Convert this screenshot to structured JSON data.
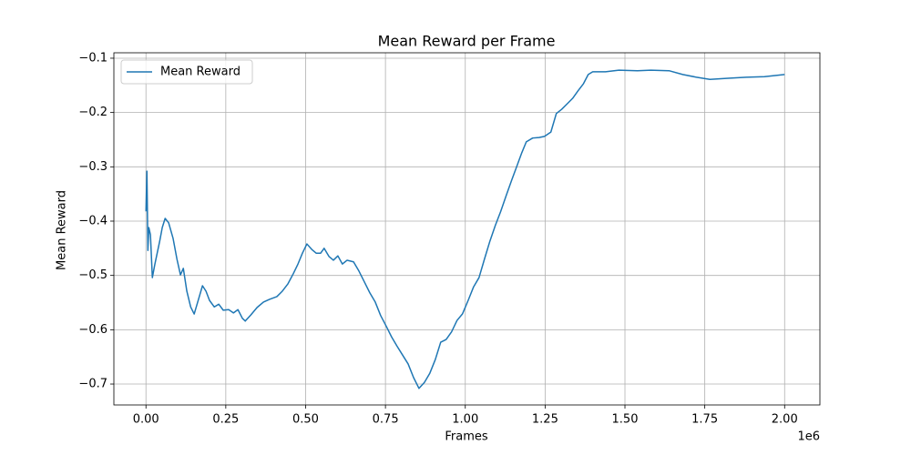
{
  "chart_data": {
    "type": "line",
    "title": "Mean Reward per Frame",
    "xlabel": "Frames",
    "ylabel": "Mean Reward",
    "x_offset_label": "1e6",
    "xlim": [
      -100500,
      2110500
    ],
    "ylim": [
      -0.7385,
      -0.09
    ],
    "xticks": [
      {
        "value": 0,
        "label": "0.00"
      },
      {
        "value": 250000,
        "label": "0.25"
      },
      {
        "value": 500000,
        "label": "0.50"
      },
      {
        "value": 750000,
        "label": "0.75"
      },
      {
        "value": 1000000,
        "label": "1.00"
      },
      {
        "value": 1250000,
        "label": "1.25"
      },
      {
        "value": 1500000,
        "label": "1.50"
      },
      {
        "value": 1750000,
        "label": "1.75"
      },
      {
        "value": 2000000,
        "label": "2.00"
      }
    ],
    "yticks": [
      {
        "value": -0.7,
        "label": "−0.7"
      },
      {
        "value": -0.6,
        "label": "−0.6"
      },
      {
        "value": -0.5,
        "label": "−0.5"
      },
      {
        "value": -0.4,
        "label": "−0.4"
      },
      {
        "value": -0.3,
        "label": "−0.3"
      },
      {
        "value": -0.2,
        "label": "−0.2"
      },
      {
        "value": -0.1,
        "label": "−0.1"
      }
    ],
    "grid": true,
    "legend": "upper-left",
    "x": [
      0,
      3000,
      6000,
      9000,
      14000,
      20000,
      28000,
      43000,
      51000,
      60000,
      71000,
      85000,
      97000,
      108000,
      117000,
      128000,
      140000,
      151000,
      162000,
      177000,
      188000,
      199000,
      214000,
      228000,
      242000,
      259000,
      274000,
      288000,
      302000,
      311000,
      328000,
      348000,
      368000,
      387000,
      410000,
      427000,
      444000,
      462000,
      476000,
      490000,
      504000,
      519000,
      533000,
      547000,
      558000,
      573000,
      587000,
      601000,
      615000,
      630000,
      650000,
      667000,
      684000,
      701000,
      718000,
      735000,
      752000,
      769000,
      786000,
      803000,
      821000,
      838000,
      855000,
      872000,
      889000,
      906000,
      923000,
      940000,
      957000,
      974000,
      991000,
      1009000,
      1026000,
      1043000,
      1060000,
      1077000,
      1094000,
      1111000,
      1128000,
      1145000,
      1162000,
      1177000,
      1191000,
      1211000,
      1231000,
      1248000,
      1268000,
      1285000,
      1302000,
      1319000,
      1336000,
      1353000,
      1370000,
      1385000,
      1399000,
      1439000,
      1481000,
      1539000,
      1581000,
      1638000,
      1681000,
      1724000,
      1766000,
      1823000,
      1880000,
      1937000,
      2000000
    ],
    "series": [
      {
        "name": "Mean Reward",
        "color": "#1f77b4",
        "values": [
          -0.382,
          -0.308,
          -0.454,
          -0.412,
          -0.425,
          -0.504,
          -0.479,
          -0.437,
          -0.412,
          -0.395,
          -0.403,
          -0.432,
          -0.47,
          -0.499,
          -0.487,
          -0.529,
          -0.558,
          -0.571,
          -0.549,
          -0.519,
          -0.529,
          -0.546,
          -0.558,
          -0.553,
          -0.564,
          -0.563,
          -0.569,
          -0.563,
          -0.579,
          -0.584,
          -0.573,
          -0.559,
          -0.549,
          -0.544,
          -0.539,
          -0.529,
          -0.516,
          -0.496,
          -0.479,
          -0.459,
          -0.442,
          -0.452,
          -0.459,
          -0.459,
          -0.45,
          -0.465,
          -0.472,
          -0.464,
          -0.479,
          -0.472,
          -0.475,
          -0.492,
          -0.512,
          -0.532,
          -0.549,
          -0.574,
          -0.593,
          -0.613,
          -0.63,
          -0.646,
          -0.663,
          -0.688,
          -0.708,
          -0.697,
          -0.68,
          -0.655,
          -0.623,
          -0.618,
          -0.604,
          -0.583,
          -0.571,
          -0.546,
          -0.521,
          -0.504,
          -0.47,
          -0.437,
          -0.408,
          -0.382,
          -0.353,
          -0.325,
          -0.298,
          -0.274,
          -0.254,
          -0.247,
          -0.246,
          -0.244,
          -0.236,
          -0.202,
          -0.194,
          -0.184,
          -0.174,
          -0.16,
          -0.147,
          -0.13,
          -0.125,
          -0.125,
          -0.122,
          -0.123,
          -0.122,
          -0.123,
          -0.13,
          -0.135,
          -0.139,
          -0.137,
          -0.135,
          -0.134,
          -0.13
        ]
      }
    ]
  }
}
